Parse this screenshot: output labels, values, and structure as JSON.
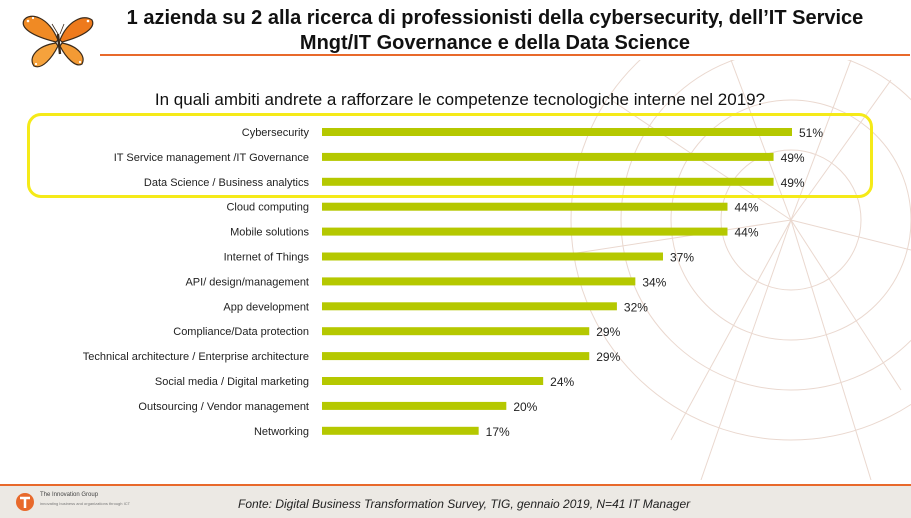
{
  "header": {
    "title_line1": "1 azienda su 2 alla ricerca di professionisti della cybersecurity, dell’IT Service",
    "title_line2": "Mngt/IT Governance e della Data Science"
  },
  "chart_data": {
    "type": "bar",
    "orientation": "horizontal",
    "title": "In quali ambiti andrete a rafforzare le competenze tecnologiche interne nel 2019?",
    "xlabel": "",
    "ylabel": "",
    "xlim": [
      0,
      55
    ],
    "grid": false,
    "legend": "none",
    "bar_color": "#b5c800",
    "highlight_color": "#f5ea18",
    "highlighted_categories": [
      "Cybersecurity",
      "IT Service management /IT Governance",
      "Data Science / Business analytics"
    ],
    "categories": [
      "Cybersecurity",
      "IT Service management /IT Governance",
      "Data Science / Business analytics",
      "Cloud computing",
      "Mobile solutions",
      "Internet of Things",
      "API/ design/management",
      "App development",
      "Compliance/Data protection",
      "Technical architecture / Enterprise architecture",
      "Social media / Digital marketing",
      "Outsourcing / Vendor management",
      "Networking"
    ],
    "values": [
      51,
      49,
      49,
      44,
      44,
      37,
      34,
      32,
      29,
      29,
      24,
      20,
      17
    ],
    "value_labels": [
      "51%",
      "49%",
      "49%",
      "44%",
      "44%",
      "37%",
      "34%",
      "32%",
      "29%",
      "29%",
      "24%",
      "20%",
      "17%"
    ]
  },
  "footer": {
    "logo_text": "The Innovation Group",
    "logo_tagline": "innovating business and organizations through ICT",
    "source": "Fonte: Digital Business Transformation Survey, TIG, gennaio 2019, N=41 IT Manager"
  },
  "colors": {
    "accent": "#e8692b",
    "footer_band": "#ece9e4"
  },
  "icons": [
    "monarch-butterfly-logo",
    "innovation-group-logo"
  ]
}
